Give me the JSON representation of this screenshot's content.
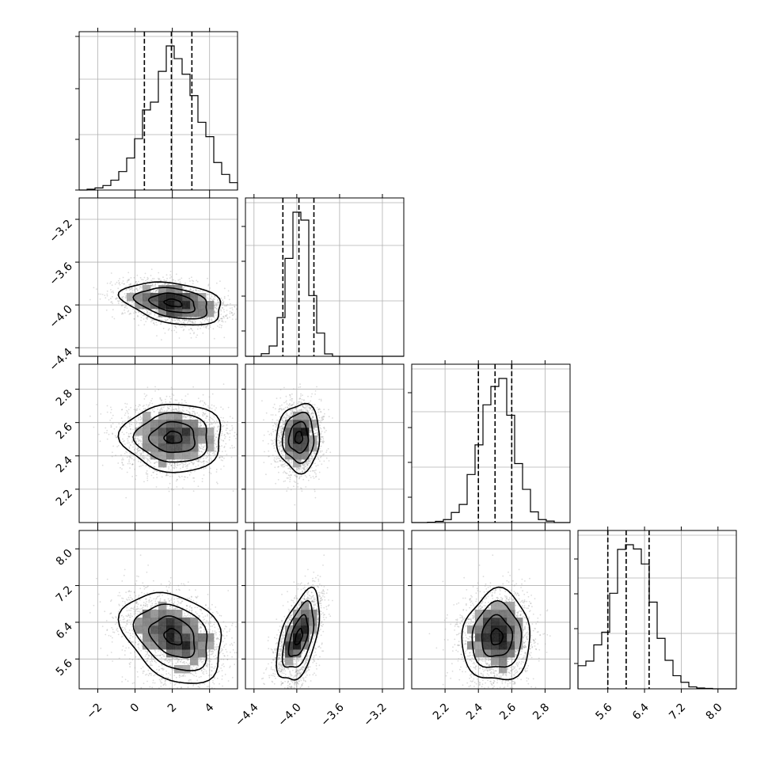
{
  "chart_data": {
    "type": "corner",
    "title": "",
    "parameters": [
      {
        "name": "",
        "range": [
          -3.0,
          5.5
        ],
        "ticks": [
          -2,
          0,
          2,
          4
        ],
        "tick_labels": [
          "−2",
          "0",
          "2",
          "4"
        ],
        "mean": 2.1,
        "sd": 1.35,
        "quantiles": [
          0.5,
          1.95,
          3.05
        ]
      },
      {
        "name": "",
        "range": [
          -4.48,
          -3.0
        ],
        "ticks": [
          -4.4,
          -4.0,
          -3.6,
          -3.2
        ],
        "tick_labels": [
          "−4.4",
          "−4.0",
          "−3.6",
          "−3.2"
        ],
        "mean": -3.98,
        "sd": 0.1,
        "quantiles": [
          -4.13,
          -3.98,
          -3.84
        ]
      },
      {
        "name": "",
        "range": [
          2.0,
          2.95
        ],
        "ticks": [
          2.2,
          2.4,
          2.6,
          2.8
        ],
        "tick_labels": [
          "2.2",
          "2.4",
          "2.6",
          "2.8"
        ],
        "mean": 2.51,
        "sd": 0.1,
        "quantiles": [
          2.4,
          2.5,
          2.6
        ]
      },
      {
        "name": "",
        "range": [
          4.95,
          8.4
        ],
        "ticks": [
          5.6,
          6.4,
          7.2,
          8.0
        ],
        "tick_labels": [
          "5.6",
          "6.4",
          "7.2",
          "8.0"
        ],
        "mean": 6.1,
        "sd": 0.42,
        "quantiles": [
          5.6,
          6.0,
          6.5
        ]
      }
    ],
    "grid": true,
    "dashed_quantile_levels": [
      0.16,
      0.5,
      0.84
    ],
    "contour_style": "black contours over grey 2D histogram with scatter samples"
  }
}
